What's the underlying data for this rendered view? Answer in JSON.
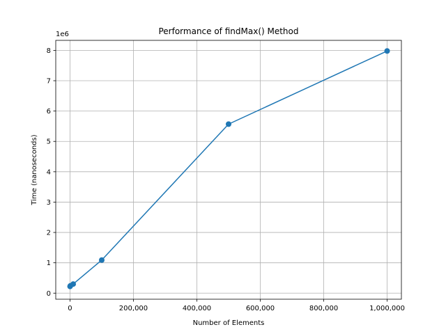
{
  "chart_data": {
    "type": "line",
    "title": "Performance of findMax() Method",
    "xlabel": "Number of Elements",
    "ylabel": "Time (nanoseconds)",
    "y_offset_label": "1e6",
    "xlim": [
      -45000,
      1045000
    ],
    "ylim": [
      -200000,
      8330000
    ],
    "x_ticks": [
      {
        "value": 0,
        "label": "0"
      },
      {
        "value": 200000,
        "label": "200,000"
      },
      {
        "value": 400000,
        "label": "400,000"
      },
      {
        "value": 600000,
        "label": "600,000"
      },
      {
        "value": 800000,
        "label": "800,000"
      },
      {
        "value": 1000000,
        "label": "1,000,000"
      }
    ],
    "y_ticks": [
      {
        "value": 0,
        "label": "0"
      },
      {
        "value": 1000000,
        "label": "1"
      },
      {
        "value": 2000000,
        "label": "2"
      },
      {
        "value": 3000000,
        "label": "3"
      },
      {
        "value": 4000000,
        "label": "4"
      },
      {
        "value": 5000000,
        "label": "5"
      },
      {
        "value": 6000000,
        "label": "6"
      },
      {
        "value": 7000000,
        "label": "7"
      },
      {
        "value": 8000000,
        "label": "8"
      }
    ],
    "grid": true,
    "series": [
      {
        "color": "#1f77b4",
        "marker": "circle",
        "x": [
          100,
          1000,
          10000,
          100000,
          500000,
          1000000
        ],
        "y": [
          220000,
          240000,
          300000,
          1090000,
          5570000,
          7980000
        ]
      }
    ]
  }
}
